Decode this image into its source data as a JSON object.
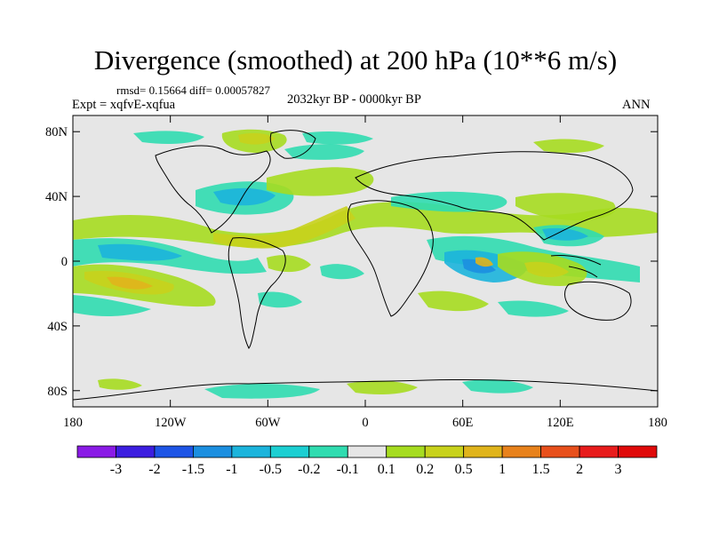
{
  "title": "Divergence (smoothed) at 200 hPa (10**6 m/s)",
  "stats": "rmsd= 0.15664 diff= 0.00057827",
  "experiment": "Expt = xqfvE-xqfua",
  "period": "2032kyr BP - 0000kyr BP",
  "season": "ANN",
  "map": {
    "lat_labels": [
      "80N",
      "40N",
      "0",
      "40S",
      "80S"
    ],
    "lat_values": [
      80,
      40,
      0,
      -40,
      -80
    ],
    "lon_labels": [
      "180",
      "120W",
      "60W",
      "0",
      "60E",
      "120E",
      "180"
    ],
    "lon_values": [
      -180,
      -120,
      -60,
      0,
      60,
      120,
      180
    ],
    "lon_range": [
      -180,
      180
    ],
    "lat_range": [
      -90,
      90
    ],
    "background_color": "#e6e6e6"
  },
  "colorbar": {
    "labels": [
      "-3",
      "-2",
      "-1.5",
      "-1",
      "-0.5",
      "-0.2",
      "-0.1",
      "0.1",
      "0.2",
      "0.5",
      "1",
      "1.5",
      "2",
      "3"
    ],
    "colors": [
      "#8a1be6",
      "#3c1ee0",
      "#1e55e6",
      "#1c8fe0",
      "#1cb4dc",
      "#1ccfd2",
      "#30dcb0",
      "#e6e6e6",
      "#a6dc20",
      "#c8d21c",
      "#e0b41c",
      "#e8821c",
      "#e8501c",
      "#e81c1c",
      "#e00a0a"
    ]
  }
}
